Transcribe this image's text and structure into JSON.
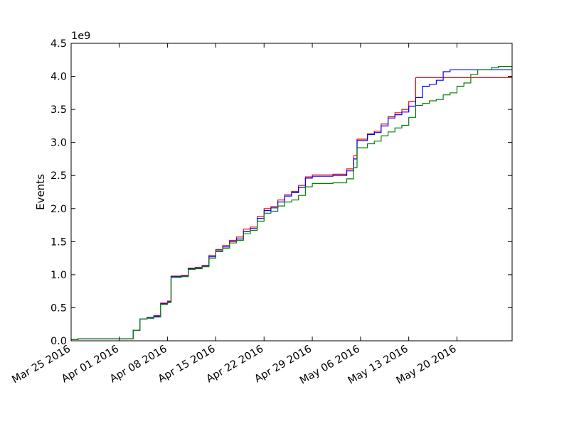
{
  "chart_data": {
    "type": "line",
    "title": "",
    "xlabel": "",
    "ylabel": "Events",
    "y_offset_label": "1e9",
    "y_multiplier": 1000000000,
    "xlim": [
      "2016-03-25",
      "2016-05-28"
    ],
    "ylim": [
      0,
      4.5
    ],
    "x_ticks": [
      "2016-03-25",
      "2016-04-01",
      "2016-04-08",
      "2016-04-15",
      "2016-04-22",
      "2016-04-29",
      "2016-05-06",
      "2016-05-13",
      "2016-05-20"
    ],
    "x_tick_labels": [
      "Mar 25 2016",
      "Apr 01 2016",
      "Apr 08 2016",
      "Apr 15 2016",
      "Apr 22 2016",
      "Apr 29 2016",
      "May 06 2016",
      "May 13 2016",
      "May 20 2016"
    ],
    "y_ticks": [
      0,
      0.5,
      1.0,
      1.5,
      2.0,
      2.5,
      3.0,
      3.5,
      4.0,
      4.5
    ],
    "y_tick_labels": [
      "0.0",
      "0.5",
      "1.0",
      "1.5",
      "2.0",
      "2.5",
      "3.0",
      "3.5",
      "4.0",
      "4.5"
    ],
    "grid": false,
    "legend": "none",
    "series": [
      {
        "color": "#ff0000",
        "points": [
          [
            "2016-03-25",
            0.02
          ],
          [
            "2016-03-26",
            0.03
          ],
          [
            "2016-04-02",
            0.03
          ],
          [
            "2016-04-03",
            0.16
          ],
          [
            "2016-04-04",
            0.33
          ],
          [
            "2016-04-05",
            0.35
          ],
          [
            "2016-04-06",
            0.38
          ],
          [
            "2016-04-07",
            0.57
          ],
          [
            "2016-04-08",
            0.6
          ],
          [
            "2016-04-08T12:00",
            0.98
          ],
          [
            "2016-04-10",
            0.99
          ],
          [
            "2016-04-11",
            1.1
          ],
          [
            "2016-04-12",
            1.11
          ],
          [
            "2016-04-13",
            1.14
          ],
          [
            "2016-04-14",
            1.29
          ],
          [
            "2016-04-15",
            1.38
          ],
          [
            "2016-04-16",
            1.44
          ],
          [
            "2016-04-17",
            1.52
          ],
          [
            "2016-04-18",
            1.57
          ],
          [
            "2016-04-19",
            1.69
          ],
          [
            "2016-04-20",
            1.72
          ],
          [
            "2016-04-21",
            1.88
          ],
          [
            "2016-04-22",
            2.0
          ],
          [
            "2016-04-23",
            2.03
          ],
          [
            "2016-04-24",
            2.13
          ],
          [
            "2016-04-25",
            2.21
          ],
          [
            "2016-04-26",
            2.26
          ],
          [
            "2016-04-27",
            2.35
          ],
          [
            "2016-04-28",
            2.48
          ],
          [
            "2016-04-29",
            2.51
          ],
          [
            "2016-05-02",
            2.52
          ],
          [
            "2016-05-04",
            2.6
          ],
          [
            "2016-05-05",
            2.8
          ],
          [
            "2016-05-05T12:00",
            3.05
          ],
          [
            "2016-05-07",
            3.13
          ],
          [
            "2016-05-08",
            3.17
          ],
          [
            "2016-05-09",
            3.28
          ],
          [
            "2016-05-10",
            3.39
          ],
          [
            "2016-05-11",
            3.45
          ],
          [
            "2016-05-12",
            3.5
          ],
          [
            "2016-05-13",
            3.62
          ],
          [
            "2016-05-14",
            3.98
          ],
          [
            "2016-05-28",
            3.98
          ]
        ]
      },
      {
        "color": "#0000ff",
        "points": [
          [
            "2016-03-25",
            0.02
          ],
          [
            "2016-03-26",
            0.03
          ],
          [
            "2016-04-02",
            0.03
          ],
          [
            "2016-04-03",
            0.16
          ],
          [
            "2016-04-04",
            0.33
          ],
          [
            "2016-04-05",
            0.35
          ],
          [
            "2016-04-06",
            0.37
          ],
          [
            "2016-04-07",
            0.56
          ],
          [
            "2016-04-08",
            0.59
          ],
          [
            "2016-04-08T12:00",
            0.97
          ],
          [
            "2016-04-10",
            0.98
          ],
          [
            "2016-04-11",
            1.09
          ],
          [
            "2016-04-12",
            1.1
          ],
          [
            "2016-04-13",
            1.13
          ],
          [
            "2016-04-14",
            1.27
          ],
          [
            "2016-04-15",
            1.36
          ],
          [
            "2016-04-16",
            1.42
          ],
          [
            "2016-04-17",
            1.5
          ],
          [
            "2016-04-18",
            1.54
          ],
          [
            "2016-04-19",
            1.65
          ],
          [
            "2016-04-20",
            1.7
          ],
          [
            "2016-04-21",
            1.85
          ],
          [
            "2016-04-22",
            1.97
          ],
          [
            "2016-04-23",
            2.01
          ],
          [
            "2016-04-24",
            2.1
          ],
          [
            "2016-04-25",
            2.19
          ],
          [
            "2016-04-26",
            2.24
          ],
          [
            "2016-04-27",
            2.32
          ],
          [
            "2016-04-28",
            2.46
          ],
          [
            "2016-04-29",
            2.49
          ],
          [
            "2016-05-02",
            2.5
          ],
          [
            "2016-05-04",
            2.57
          ],
          [
            "2016-05-05",
            2.75
          ],
          [
            "2016-05-05T12:00",
            3.03
          ],
          [
            "2016-05-07",
            3.12
          ],
          [
            "2016-05-08",
            3.15
          ],
          [
            "2016-05-09",
            3.25
          ],
          [
            "2016-05-10",
            3.37
          ],
          [
            "2016-05-11",
            3.42
          ],
          [
            "2016-05-12",
            3.46
          ],
          [
            "2016-05-13",
            3.55
          ],
          [
            "2016-05-14",
            3.68
          ],
          [
            "2016-05-15",
            3.85
          ],
          [
            "2016-05-16",
            3.88
          ],
          [
            "2016-05-17",
            3.94
          ],
          [
            "2016-05-18",
            4.07
          ],
          [
            "2016-05-19",
            4.1
          ],
          [
            "2016-05-28",
            4.1
          ]
        ]
      },
      {
        "color": "#008000",
        "points": [
          [
            "2016-03-25",
            0.02
          ],
          [
            "2016-03-26",
            0.03
          ],
          [
            "2016-04-02",
            0.03
          ],
          [
            "2016-04-03",
            0.16
          ],
          [
            "2016-04-04",
            0.33
          ],
          [
            "2016-04-05",
            0.34
          ],
          [
            "2016-04-06",
            0.36
          ],
          [
            "2016-04-07",
            0.55
          ],
          [
            "2016-04-08",
            0.58
          ],
          [
            "2016-04-08T12:00",
            0.96
          ],
          [
            "2016-04-10",
            0.97
          ],
          [
            "2016-04-11",
            1.08
          ],
          [
            "2016-04-12",
            1.09
          ],
          [
            "2016-04-13",
            1.12
          ],
          [
            "2016-04-14",
            1.25
          ],
          [
            "2016-04-15",
            1.35
          ],
          [
            "2016-04-16",
            1.4
          ],
          [
            "2016-04-17",
            1.48
          ],
          [
            "2016-04-18",
            1.52
          ],
          [
            "2016-04-19",
            1.62
          ],
          [
            "2016-04-20",
            1.67
          ],
          [
            "2016-04-21",
            1.81
          ],
          [
            "2016-04-22",
            1.93
          ],
          [
            "2016-04-23",
            1.96
          ],
          [
            "2016-04-24",
            2.04
          ],
          [
            "2016-04-25",
            2.1
          ],
          [
            "2016-04-26",
            2.13
          ],
          [
            "2016-04-27",
            2.2
          ],
          [
            "2016-04-28",
            2.33
          ],
          [
            "2016-04-29",
            2.38
          ],
          [
            "2016-05-02",
            2.39
          ],
          [
            "2016-05-04",
            2.45
          ],
          [
            "2016-05-05",
            2.62
          ],
          [
            "2016-05-05T12:00",
            2.92
          ],
          [
            "2016-05-07",
            2.98
          ],
          [
            "2016-05-08",
            3.02
          ],
          [
            "2016-05-09",
            3.1
          ],
          [
            "2016-05-10",
            3.16
          ],
          [
            "2016-05-11",
            3.22
          ],
          [
            "2016-05-12",
            3.26
          ],
          [
            "2016-05-13",
            3.38
          ],
          [
            "2016-05-14",
            3.56
          ],
          [
            "2016-05-15",
            3.59
          ],
          [
            "2016-05-16",
            3.63
          ],
          [
            "2016-05-17",
            3.65
          ],
          [
            "2016-05-18",
            3.72
          ],
          [
            "2016-05-19",
            3.75
          ],
          [
            "2016-05-20",
            3.85
          ],
          [
            "2016-05-21",
            3.9
          ],
          [
            "2016-05-22",
            4.03
          ],
          [
            "2016-05-23",
            4.1
          ],
          [
            "2016-05-25",
            4.13
          ],
          [
            "2016-05-26",
            4.15
          ],
          [
            "2016-05-28",
            4.16
          ]
        ]
      }
    ]
  }
}
